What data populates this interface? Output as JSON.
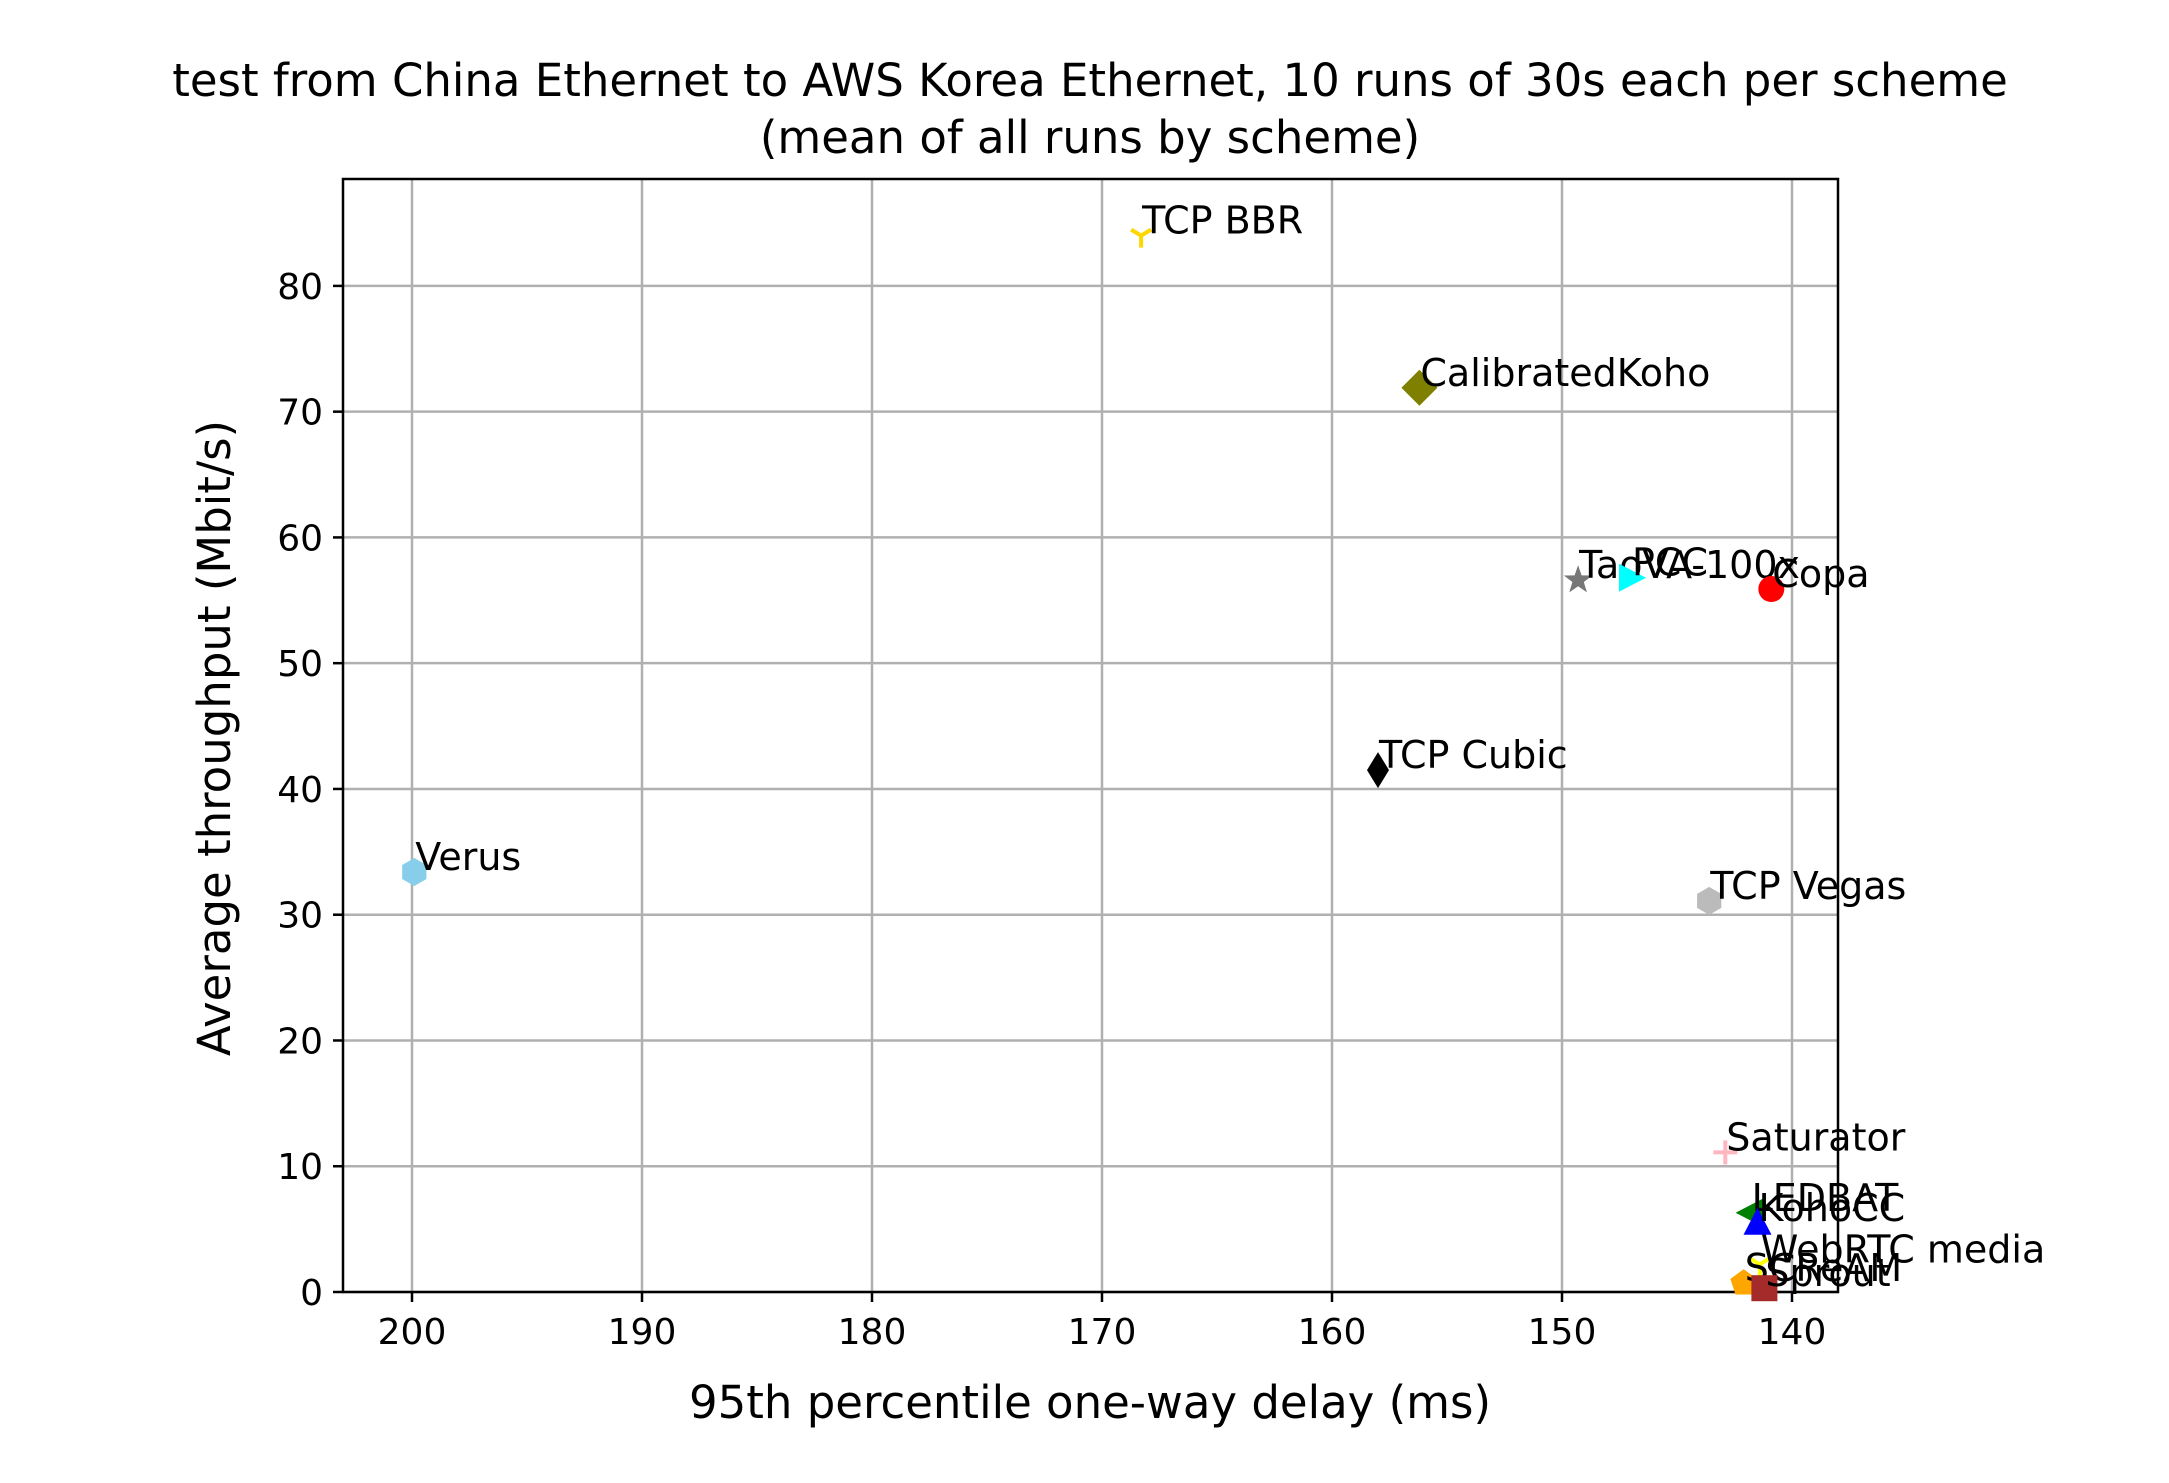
{
  "chart_data": {
    "type": "scatter",
    "title": "test from China Ethernet to AWS Korea Ethernet, 10 runs of 30s each per scheme",
    "subtitle": "(mean of all runs by scheme)",
    "xlabel": "95th percentile one-way delay (ms)",
    "ylabel": "Average throughput (Mbit/s)",
    "xlim": [
      203,
      138
    ],
    "ylim": [
      0,
      88.5
    ],
    "x_inverted": true,
    "grid": true,
    "xticks": [
      200,
      190,
      180,
      170,
      160,
      150,
      140
    ],
    "yticks": [
      0,
      10,
      20,
      30,
      40,
      50,
      60,
      70,
      80
    ],
    "series": [
      {
        "name": "TCP BBR",
        "x": 168.3,
        "y": 84.0,
        "color": "#ffd700",
        "marker": "tri-down"
      },
      {
        "name": "CalibratedKoho",
        "x": 156.2,
        "y": 71.9,
        "color": "#808000",
        "marker": "diamond"
      },
      {
        "name": "TaoVA-100x",
        "x": 149.3,
        "y": 56.6,
        "color": "#777777",
        "marker": "star"
      },
      {
        "name": "PCC",
        "x": 147.0,
        "y": 56.8,
        "color": "#00ffff",
        "marker": "triangle-right"
      },
      {
        "name": "Copa",
        "x": 140.9,
        "y": 55.9,
        "color": "#ff0000",
        "marker": "circle"
      },
      {
        "name": "TCP Cubic",
        "x": 158.0,
        "y": 41.5,
        "color": "#000000",
        "marker": "thin-diamond"
      },
      {
        "name": "Verus",
        "x": 199.9,
        "y": 33.4,
        "color": "#87ceeb",
        "marker": "hexagon"
      },
      {
        "name": "TCP Vegas",
        "x": 143.6,
        "y": 31.1,
        "color": "#bbbbbb",
        "marker": "hexagon"
      },
      {
        "name": "Saturator",
        "x": 142.9,
        "y": 11.1,
        "color": "#ffb6c1",
        "marker": "plus"
      },
      {
        "name": "LEDBAT",
        "x": 141.8,
        "y": 6.3,
        "color": "#008000",
        "marker": "triangle-left"
      },
      {
        "name": "KohoCC",
        "x": 141.5,
        "y": 5.5,
        "color": "#0000ff",
        "marker": "triangle-up"
      },
      {
        "name": "WebRTC media",
        "x": 141.4,
        "y": 2.2,
        "color": "#ffff00",
        "marker": "tri-down"
      },
      {
        "name": "SCReAM",
        "x": 142.1,
        "y": 0.7,
        "color": "#ffa500",
        "marker": "pentagon"
      },
      {
        "name": "Sprout",
        "x": 141.2,
        "y": 0.3,
        "color": "#a52a2a",
        "marker": "square"
      }
    ]
  }
}
